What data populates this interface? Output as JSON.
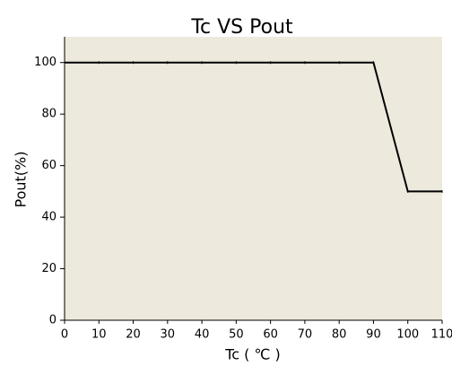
{
  "chart_data": {
    "type": "line",
    "title": "Tc VS Pout",
    "x_label": "Tc ( ℃ )",
    "y_label": "Pout(%)",
    "x": [
      0,
      10,
      20,
      30,
      40,
      50,
      60,
      70,
      80,
      90,
      100,
      110
    ],
    "series": [
      {
        "name": "Pout",
        "color": "#000000",
        "values": [
          100,
          100,
          100,
          100,
          100,
          100,
          100,
          100,
          100,
          100,
          50,
          50
        ]
      }
    ],
    "xlim": [
      0,
      110
    ],
    "xticks": [
      0,
      10,
      20,
      30,
      40,
      50,
      60,
      70,
      80,
      90,
      100,
      110
    ],
    "ylim": [
      0,
      110
    ],
    "yticks": [
      0,
      20,
      40,
      60,
      80,
      100
    ],
    "grid": false,
    "background": "#ede9dd"
  }
}
